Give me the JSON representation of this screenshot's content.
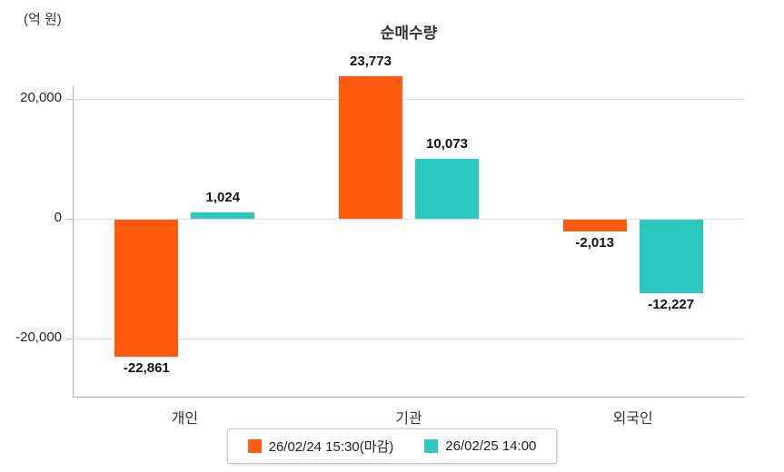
{
  "chart_data": {
    "type": "bar",
    "title": "순매수량",
    "unit_label": "(억 원)",
    "categories": [
      "개인",
      "기관",
      "외국인"
    ],
    "series": [
      {
        "name": "26/02/24 15:30(마감)",
        "color": "#ff5a0e",
        "values": [
          -22861,
          23773,
          -2013
        ],
        "value_labels": [
          "-22,861",
          "23,773",
          "-2,013"
        ]
      },
      {
        "name": "26/02/25 14:00",
        "color": "#2bc9c0",
        "values": [
          1024,
          10073,
          -12227
        ],
        "value_labels": [
          "1,024",
          "10,073",
          "-12,227"
        ]
      }
    ],
    "yticks": [
      20000,
      0,
      -20000
    ],
    "ytick_labels": [
      "20,000",
      "0",
      "-20,000"
    ],
    "ylim": [
      -26000,
      28000
    ],
    "grid": true,
    "legend_position": "bottom"
  }
}
